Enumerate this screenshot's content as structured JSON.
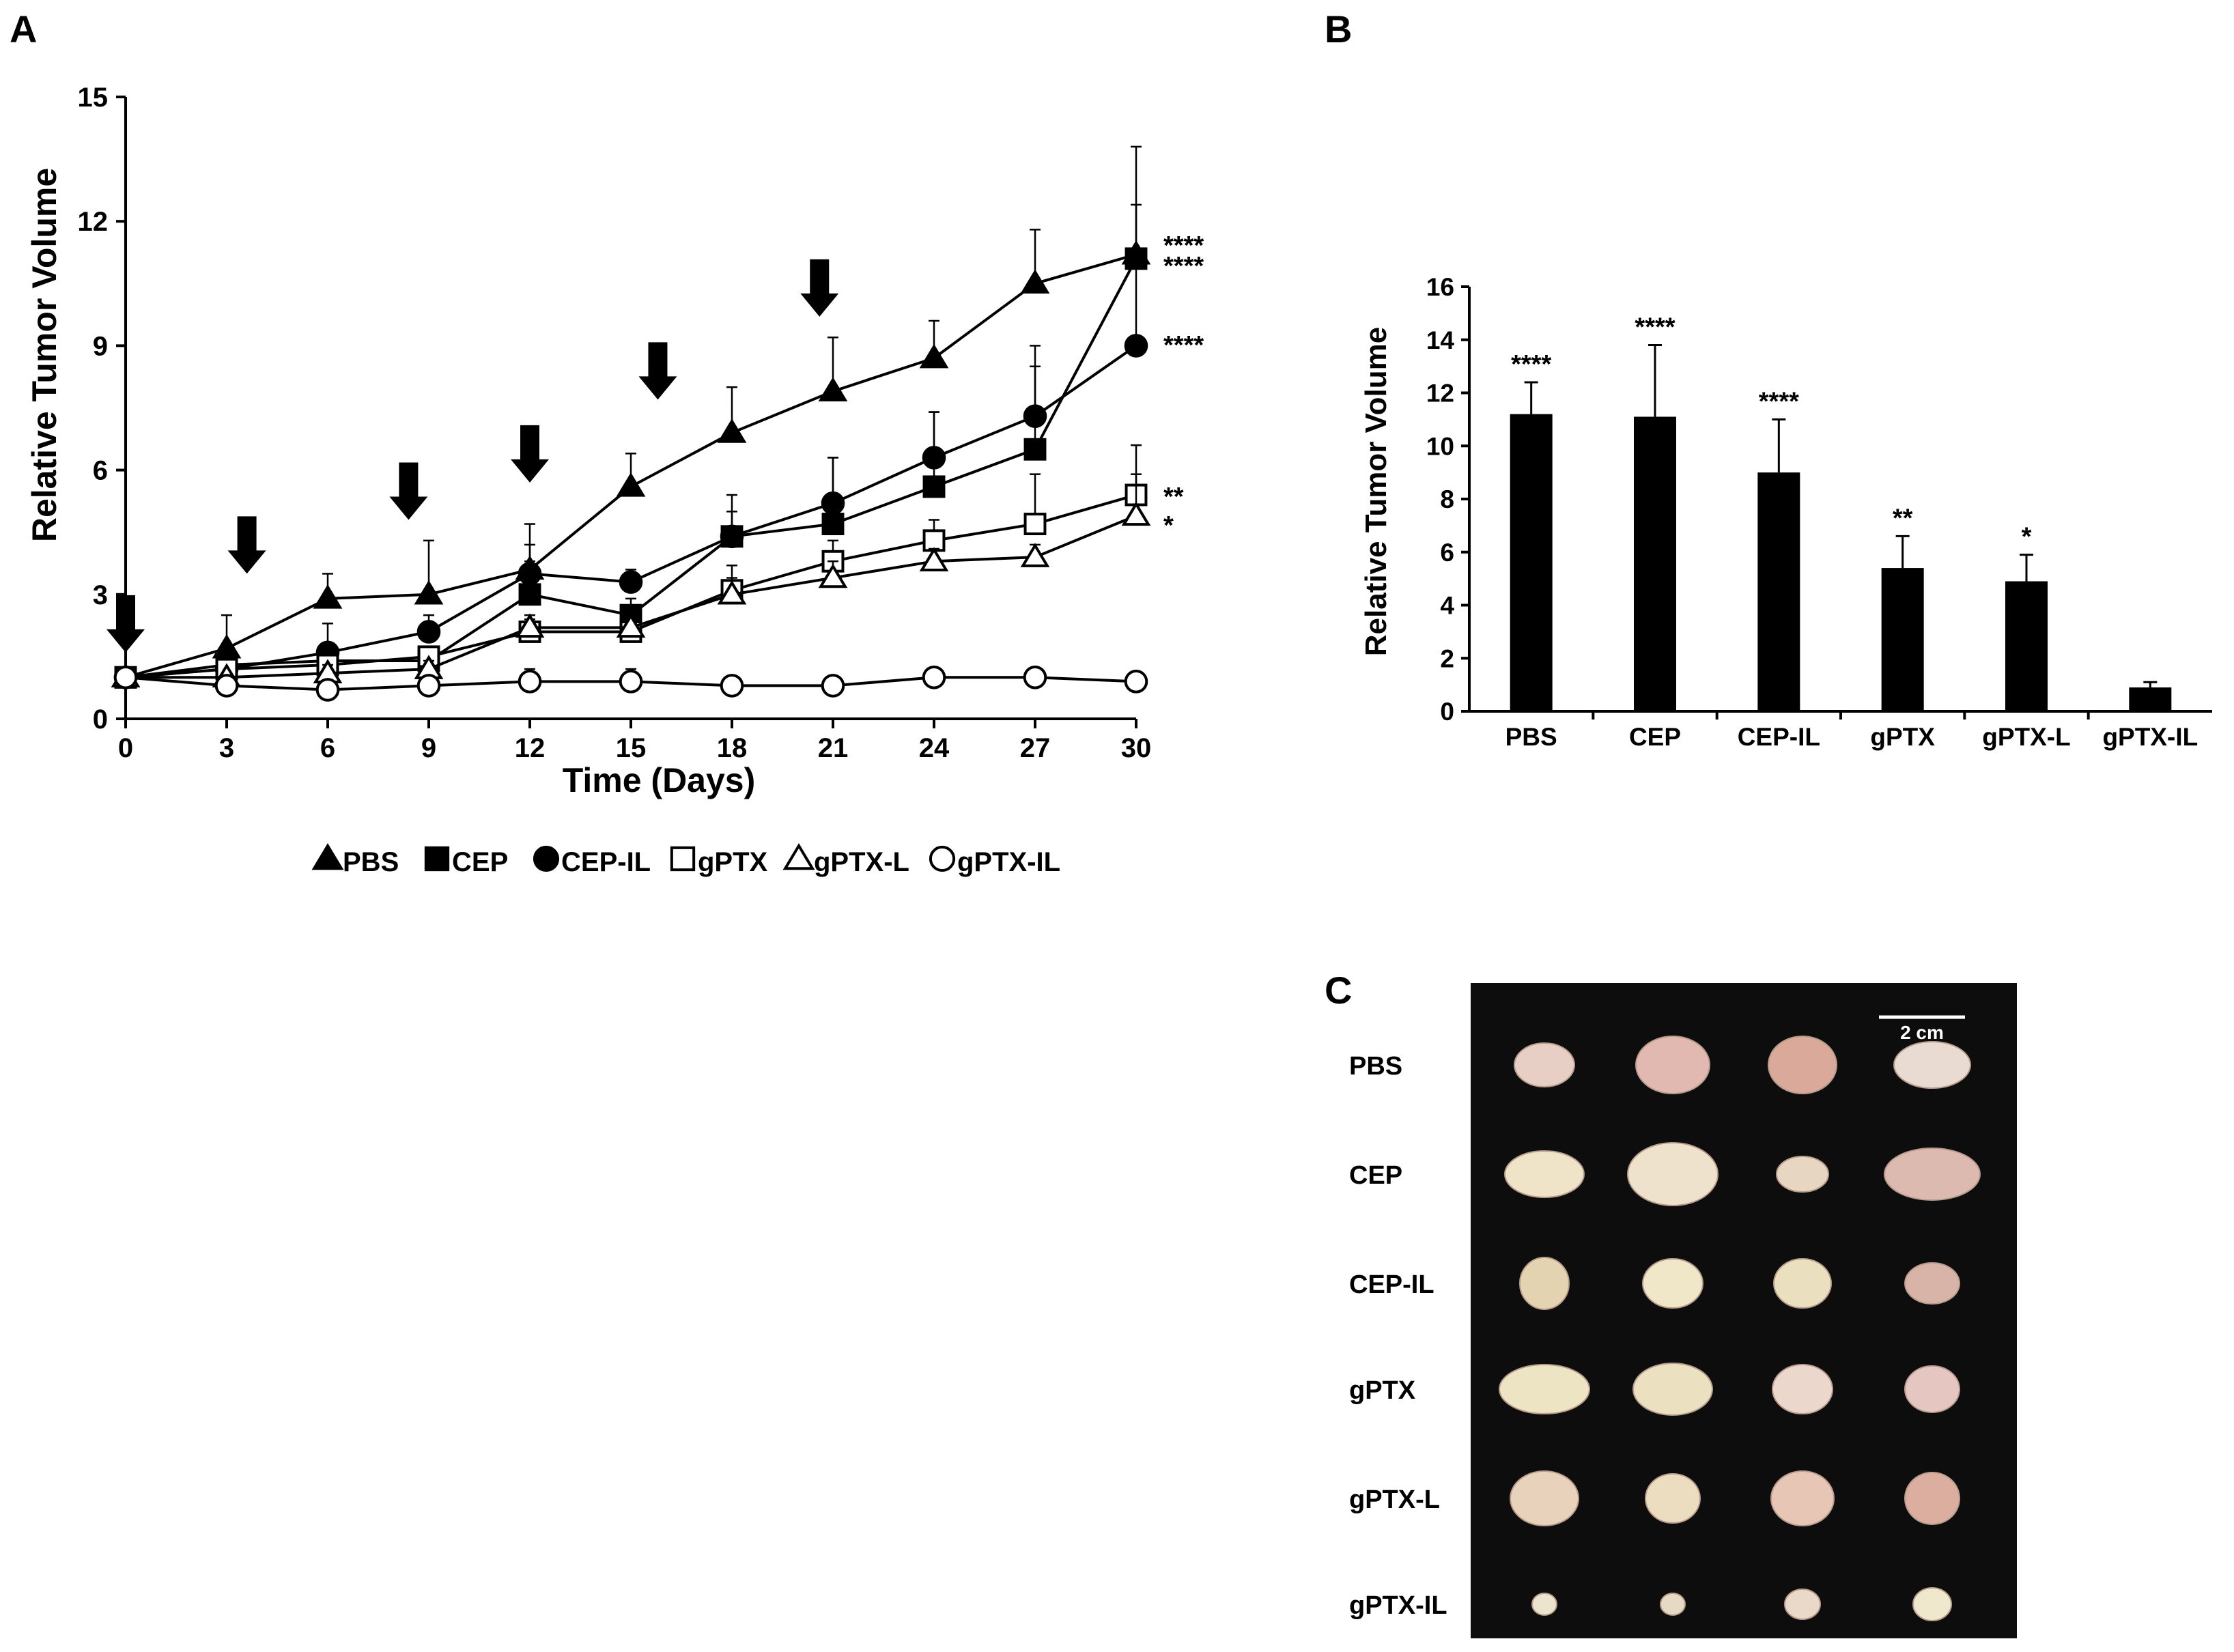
{
  "panels": {
    "a": "A",
    "b": "B",
    "c": "C"
  },
  "chart_data": [
    {
      "type": "line",
      "panel": "A",
      "xlabel": "Time (Days)",
      "ylabel": "Relative Tumor Volume",
      "xlim": [
        0,
        30
      ],
      "ylim": [
        0,
        15
      ],
      "xticks": [
        "0",
        "3",
        "6",
        "9",
        "12",
        "15",
        "18",
        "21",
        "24",
        "27",
        "30"
      ],
      "yticks": [
        "0",
        "3",
        "6",
        "9",
        "12",
        "15"
      ],
      "x": [
        0,
        3,
        6,
        9,
        12,
        15,
        18,
        21,
        24,
        27,
        30
      ],
      "dose_days": [
        0,
        3.6,
        8.4,
        12,
        15.8,
        20.6
      ],
      "series": [
        {
          "name": "PBS",
          "marker": "triangle-filled",
          "values": [
            1.0,
            1.7,
            2.9,
            3.0,
            3.6,
            5.6,
            6.9,
            7.9,
            8.7,
            10.5,
            11.2
          ],
          "errors": [
            0,
            0.8,
            0.6,
            1.3,
            1.1,
            0.8,
            1.1,
            1.3,
            0.9,
            1.3,
            1.2
          ],
          "significance": "****"
        },
        {
          "name": "CEP",
          "marker": "square-filled",
          "values": [
            1.0,
            1.3,
            1.4,
            1.4,
            3.0,
            2.5,
            4.4,
            4.7,
            5.6,
            6.5,
            11.1
          ],
          "errors": [
            0,
            0.2,
            0.3,
            0.2,
            0.8,
            0.4,
            1.0,
            1.6,
            1.8,
            2.0,
            2.7
          ],
          "significance": "****"
        },
        {
          "name": "CEP-IL",
          "marker": "circle-filled",
          "values": [
            1.0,
            1.2,
            1.6,
            2.1,
            3.5,
            3.3,
            4.4,
            5.2,
            6.3,
            7.3,
            9.0
          ],
          "errors": [
            0,
            0.2,
            0.7,
            0.4,
            0.7,
            0.3,
            0.6,
            1.1,
            1.1,
            1.7,
            2.0
          ],
          "significance": "****"
        },
        {
          "name": "gPTX",
          "marker": "square-open",
          "values": [
            1.0,
            1.2,
            1.3,
            1.5,
            2.1,
            2.1,
            3.1,
            3.8,
            4.3,
            4.7,
            5.4
          ],
          "errors": [
            0,
            0.2,
            0.2,
            0.2,
            0.3,
            0.3,
            0.6,
            0.5,
            0.5,
            1.2,
            1.2
          ],
          "significance": "**"
        },
        {
          "name": "gPTX-L",
          "marker": "triangle-open",
          "values": [
            1.0,
            1.0,
            1.1,
            1.2,
            2.2,
            2.2,
            3.0,
            3.4,
            3.8,
            3.9,
            4.9
          ],
          "errors": [
            0,
            0.1,
            0.2,
            0.2,
            0.3,
            0.2,
            0.4,
            0.4,
            0.3,
            0.3,
            1.0
          ],
          "significance": "*"
        },
        {
          "name": "gPTX-IL",
          "marker": "circle-open",
          "values": [
            1.0,
            0.8,
            0.7,
            0.8,
            0.9,
            0.9,
            0.8,
            0.8,
            1.0,
            1.0,
            0.9
          ],
          "errors": [
            0,
            0.1,
            0.1,
            0.1,
            0.3,
            0.3,
            0.1,
            0.1,
            0.2,
            0.2,
            0.2
          ],
          "significance": ""
        }
      ],
      "legend_location": "bottom-center"
    },
    {
      "type": "bar",
      "panel": "B",
      "ylabel": "Relative Tumor Volume",
      "ylim": [
        0,
        16
      ],
      "yticks": [
        "0",
        "2",
        "4",
        "6",
        "8",
        "10",
        "12",
        "14",
        "16"
      ],
      "categories": [
        "PBS",
        "CEP",
        "CEP-IL",
        "gPTX",
        "gPTX-L",
        "gPTX-IL"
      ],
      "values": [
        11.2,
        11.1,
        9.0,
        5.4,
        4.9,
        0.9
      ],
      "errors": [
        1.2,
        2.7,
        2.0,
        1.2,
        1.0,
        0.2
      ],
      "significance": [
        "****",
        "****",
        "****",
        "**",
        "*",
        ""
      ],
      "bar_color": "#000000"
    }
  ],
  "photo": {
    "scale_label": "2 cm",
    "rows": [
      "PBS",
      "CEP",
      "CEP-IL",
      "gPTX",
      "gPTX-L",
      "gPTX-IL"
    ]
  }
}
